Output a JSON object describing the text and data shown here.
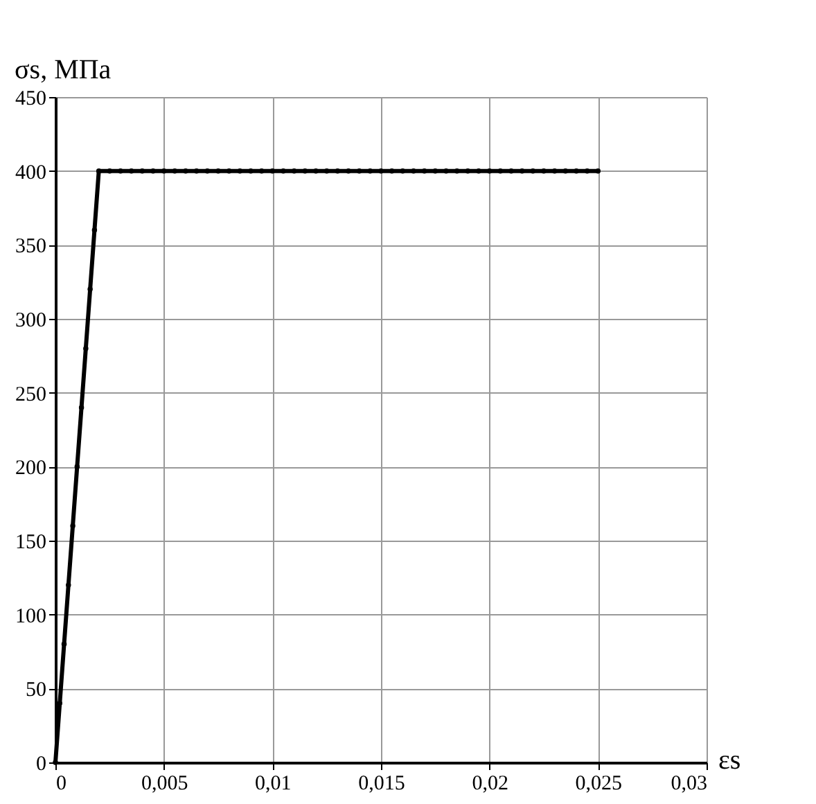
{
  "chart_data": {
    "type": "line",
    "xlabel": "εs",
    "ylabel": "σs, МПа",
    "x": [
      0,
      0.0002,
      0.0004,
      0.0006,
      0.0008,
      0.001,
      0.0012,
      0.0014,
      0.0016,
      0.0018,
      0.002,
      0.0025,
      0.003,
      0.0035,
      0.004,
      0.0045,
      0.005,
      0.0055,
      0.006,
      0.0065,
      0.007,
      0.0075,
      0.008,
      0.0085,
      0.009,
      0.0095,
      0.01,
      0.0105,
      0.011,
      0.0115,
      0.012,
      0.0125,
      0.013,
      0.0135,
      0.014,
      0.0145,
      0.015,
      0.0155,
      0.016,
      0.0165,
      0.017,
      0.0175,
      0.018,
      0.0185,
      0.019,
      0.0195,
      0.02,
      0.0205,
      0.021,
      0.0215,
      0.022,
      0.0225,
      0.023,
      0.0235,
      0.024,
      0.0245,
      0.025
    ],
    "series": [
      {
        "color": "#000000",
        "values": [
          0,
          40,
          80,
          120,
          160,
          200,
          240,
          280,
          320,
          360,
          400,
          400,
          400,
          400,
          400,
          400,
          400,
          400,
          400,
          400,
          400,
          400,
          400,
          400,
          400,
          400,
          400,
          400,
          400,
          400,
          400,
          400,
          400,
          400,
          400,
          400,
          400,
          400,
          400,
          400,
          400,
          400,
          400,
          400,
          400,
          400,
          400,
          400,
          400,
          400,
          400,
          400,
          400,
          400,
          400,
          400,
          400
        ]
      }
    ],
    "xlim": [
      0,
      0.03
    ],
    "xticks": [
      0,
      {
        "value": 0.005,
        "label": "0,005"
      },
      {
        "value": 0.01,
        "label": "0,01"
      },
      {
        "value": 0.015,
        "label": "0,015"
      },
      {
        "value": 0.02,
        "label": "0,02"
      },
      {
        "value": 0.025,
        "label": "0,025"
      },
      {
        "value": 0.03,
        "label": "0,03"
      }
    ],
    "ylim": [
      0,
      450
    ],
    "yticks": [
      0,
      50,
      100,
      150,
      200,
      250,
      300,
      350,
      400,
      450
    ],
    "grid": true,
    "marker": "circle",
    "line_style": "solid"
  }
}
